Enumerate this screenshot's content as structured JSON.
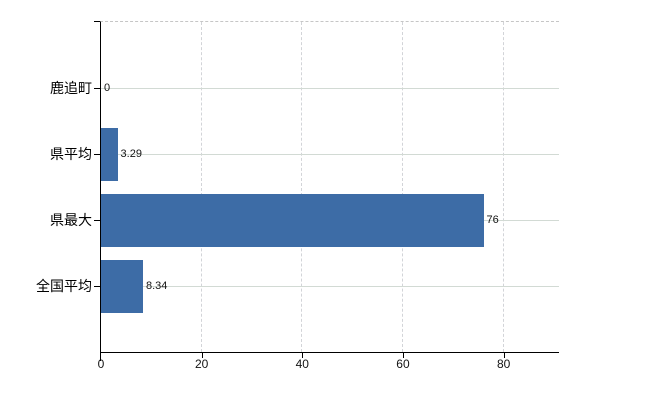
{
  "chart_data": {
    "type": "bar",
    "orientation": "horizontal",
    "title": "",
    "categories": [
      "鹿追町",
      "県平均",
      "県最大",
      "全国平均"
    ],
    "values": [
      0,
      3.29,
      76,
      8.34
    ],
    "value_labels": [
      "0",
      "3.29",
      "76",
      "8.34"
    ],
    "xlim": [
      0,
      91
    ],
    "xticks": [
      0,
      20,
      40,
      60,
      80
    ],
    "xtick_labels": [
      "0",
      "20",
      "40",
      "60",
      "80"
    ],
    "bar_color": "#3D6CA6",
    "grid": true,
    "legend": false
  }
}
